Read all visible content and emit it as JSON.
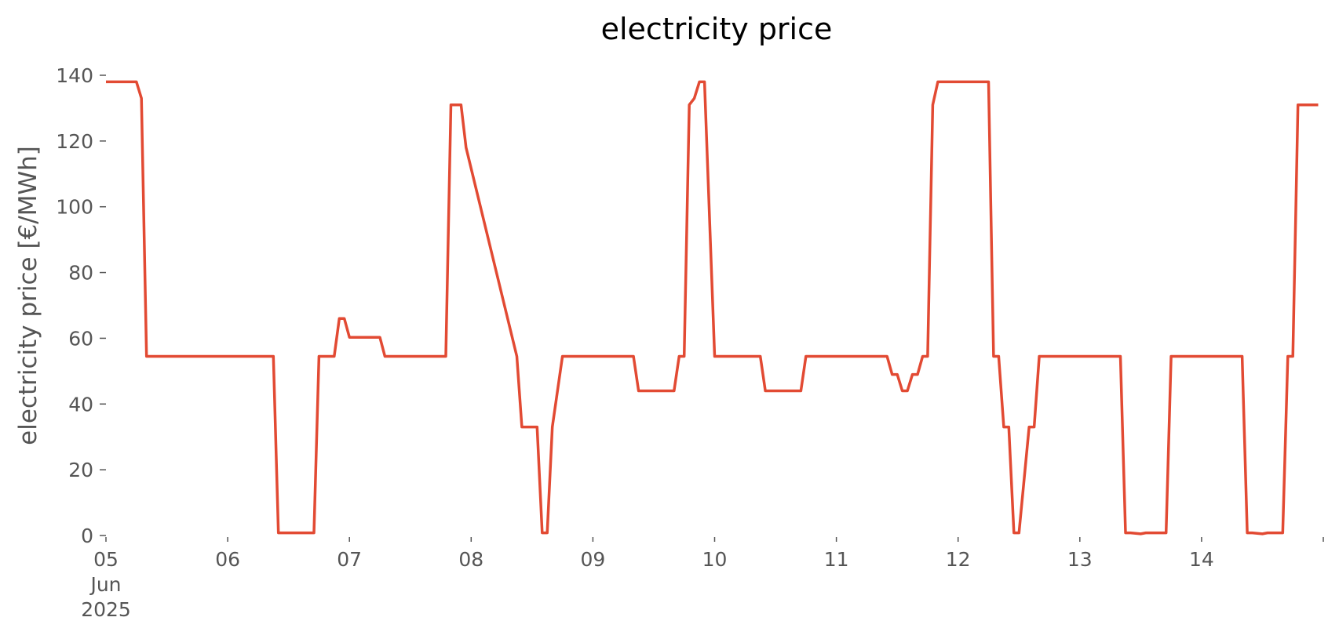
{
  "chart_data": {
    "type": "line",
    "title": "electricity price",
    "xlabel": "",
    "ylabel": "electricity price [€/MWh]",
    "ylim": [
      0,
      140
    ],
    "xlim": [
      "2025-06-05",
      "2025-06-15"
    ],
    "grid": false,
    "legend": "none",
    "line_color": "#E24A33",
    "y_ticks": [
      0,
      20,
      40,
      60,
      80,
      100,
      120,
      140
    ],
    "y_tick_labels": [
      "0",
      "20",
      "40",
      "60",
      "80",
      "100",
      "120",
      "140"
    ],
    "x_ticks": [
      {
        "date": "2025-06-05",
        "label": "05",
        "sub": [
          "Jun",
          "2025"
        ]
      },
      {
        "date": "2025-06-06",
        "label": "06"
      },
      {
        "date": "2025-06-07",
        "label": "07"
      },
      {
        "date": "2025-06-08",
        "label": "08"
      },
      {
        "date": "2025-06-09",
        "label": "09"
      },
      {
        "date": "2025-06-10",
        "label": "10"
      },
      {
        "date": "2025-06-11",
        "label": "11"
      },
      {
        "date": "2025-06-12",
        "label": "12"
      },
      {
        "date": "2025-06-13",
        "label": "13"
      },
      {
        "date": "2025-06-14",
        "label": "14"
      },
      {
        "date": "2025-06-15",
        "label": ""
      }
    ],
    "series": [
      {
        "x": [
          "2025-06-05 00:00",
          "2025-06-05 06:00",
          "2025-06-05 07:00",
          "2025-06-05 08:00",
          "2025-06-06 09:00",
          "2025-06-06 10:00",
          "2025-06-06 17:00",
          "2025-06-06 18:00",
          "2025-06-06 21:00",
          "2025-06-06 22:00",
          "2025-06-06 23:00",
          "2025-06-07 00:00",
          "2025-06-07 06:00",
          "2025-06-07 07:00",
          "2025-06-07 19:00",
          "2025-06-07 20:00",
          "2025-06-07 22:00",
          "2025-06-07 23:00",
          "2025-06-08 09:00",
          "2025-06-08 10:00",
          "2025-06-08 13:00",
          "2025-06-08 14:00",
          "2025-06-08 15:00",
          "2025-06-08 16:00",
          "2025-06-08 18:00",
          "2025-06-09 08:00",
          "2025-06-09 09:00",
          "2025-06-09 16:00",
          "2025-06-09 17:00",
          "2025-06-09 18:00",
          "2025-06-09 19:00",
          "2025-06-09 20:00",
          "2025-06-09 21:00",
          "2025-06-09 22:00",
          "2025-06-10 00:00",
          "2025-06-10 09:00",
          "2025-06-10 10:00",
          "2025-06-10 17:00",
          "2025-06-10 18:00",
          "2025-06-11 10:00",
          "2025-06-11 11:00",
          "2025-06-11 12:00",
          "2025-06-11 13:00",
          "2025-06-11 14:00",
          "2025-06-11 15:00",
          "2025-06-11 16:00",
          "2025-06-11 17:00",
          "2025-06-11 18:00",
          "2025-06-11 19:00",
          "2025-06-11 20:00",
          "2025-06-12 06:00",
          "2025-06-12 07:00",
          "2025-06-12 08:00",
          "2025-06-12 09:00",
          "2025-06-12 10:00",
          "2025-06-12 11:00",
          "2025-06-12 12:00",
          "2025-06-12 14:00",
          "2025-06-12 15:00",
          "2025-06-12 16:00",
          "2025-06-12 17:00",
          "2025-06-12 18:00",
          "2025-06-13 08:00",
          "2025-06-13 09:00",
          "2025-06-13 10:00",
          "2025-06-13 12:00",
          "2025-06-13 13:00",
          "2025-06-13 14:00",
          "2025-06-13 17:00",
          "2025-06-13 18:00",
          "2025-06-14 08:00",
          "2025-06-14 09:00",
          "2025-06-14 10:00",
          "2025-06-14 12:00",
          "2025-06-14 13:00",
          "2025-06-14 16:00",
          "2025-06-14 17:00",
          "2025-06-14 18:00",
          "2025-06-14 19:00",
          "2025-06-14 20:00",
          "2025-06-14 21:00",
          "2025-06-14 23:00"
        ],
        "values": [
          138,
          138,
          133,
          54.5,
          54.5,
          0.8,
          0.8,
          54.5,
          54.5,
          66,
          66,
          60.3,
          60.3,
          54.5,
          54.5,
          131,
          131,
          118,
          54.5,
          33,
          33,
          0.8,
          0.8,
          33,
          54.5,
          54.5,
          44,
          44,
          54.5,
          54.5,
          131,
          133,
          138,
          138,
          54.5,
          54.5,
          44,
          44,
          54.5,
          54.5,
          49,
          49,
          44,
          44,
          49,
          49,
          54.5,
          54.5,
          131,
          138,
          138,
          54.5,
          54.5,
          33,
          33,
          0.8,
          0.8,
          33,
          33,
          54.5,
          54.5,
          54.5,
          54.5,
          0.8,
          0.8,
          0.5,
          0.8,
          0.8,
          0.8,
          54.5,
          54.5,
          0.8,
          0.8,
          0.5,
          0.8,
          0.8,
          54.5,
          54.5,
          131,
          131,
          131,
          131
        ]
      }
    ]
  }
}
